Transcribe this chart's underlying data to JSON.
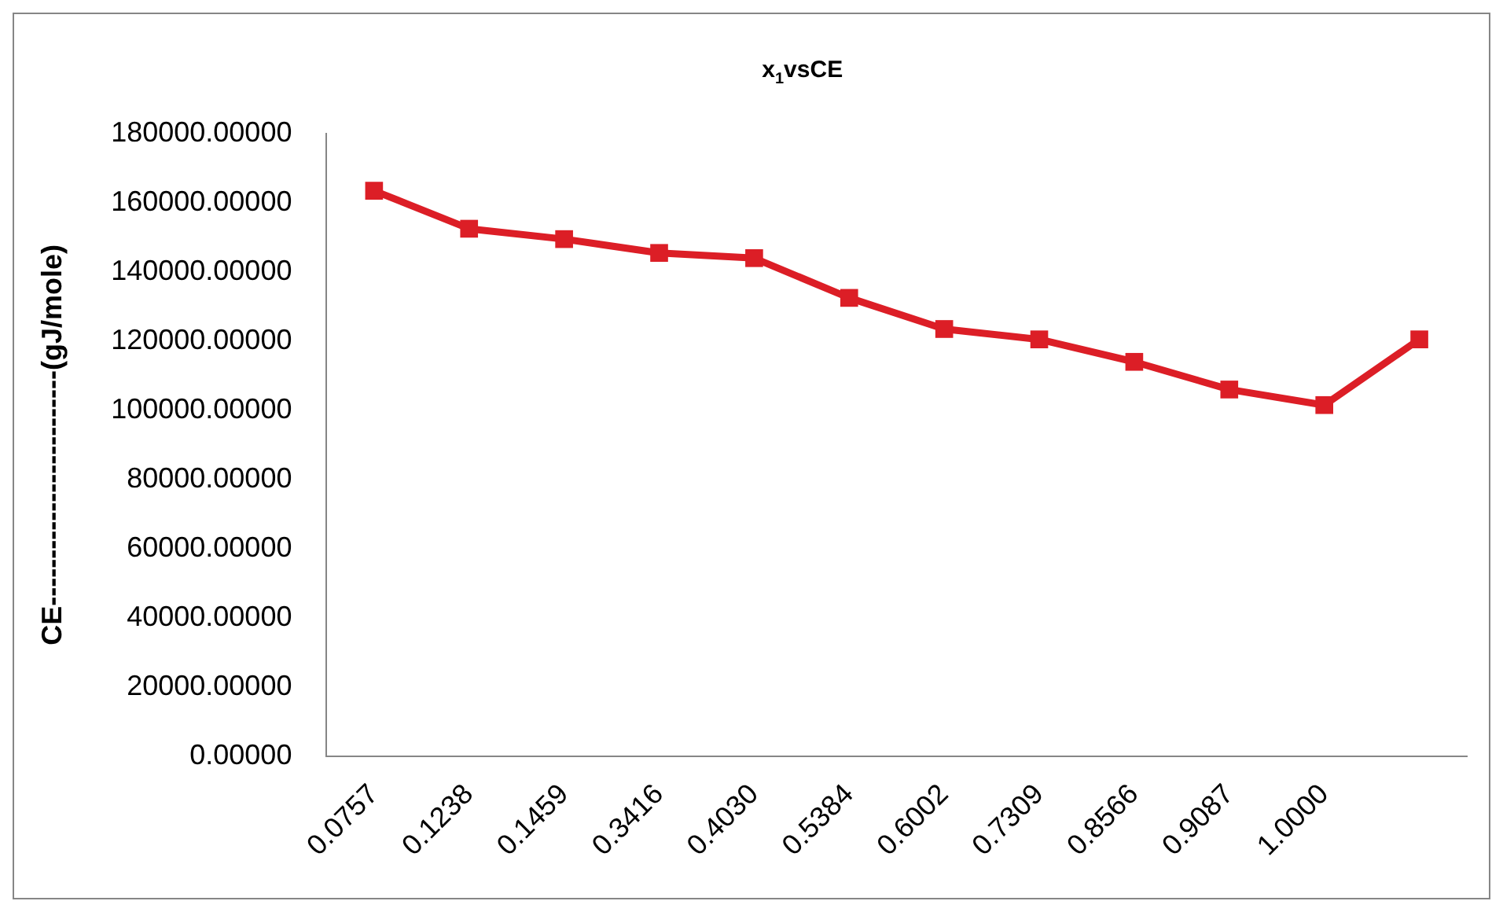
{
  "chart_data": {
    "type": "line",
    "title": "x$_{1}$vsCE",
    "ylabel": "CE-------------------------(gJ/mole)",
    "categories": [
      "0.0757",
      "0.1238",
      "0.1459",
      "0.3416",
      "0.4030",
      "0.5384",
      "0.6002",
      "0.7309",
      "0.8566",
      "0.9087",
      "1.0000",
      null
    ],
    "series": [
      {
        "color": "#dc1e26",
        "values": [
          163500,
          152500,
          149500,
          145500,
          144000,
          132500,
          123500,
          120500,
          114000,
          106000,
          101500,
          120500
        ]
      }
    ],
    "ylim": [
      0,
      180000
    ],
    "yticks": [
      {
        "value": 0,
        "label": "0.00000"
      },
      {
        "value": 20000,
        "label": "20000.00000"
      },
      {
        "value": 40000,
        "label": "40000.00000"
      },
      {
        "value": 60000,
        "label": "60000.00000"
      },
      {
        "value": 80000,
        "label": "80000.00000"
      },
      {
        "value": 100000,
        "label": "100000.00000"
      },
      {
        "value": 120000,
        "label": "120000.00000"
      },
      {
        "value": 140000,
        "label": "140000.00000"
      },
      {
        "value": 160000,
        "label": "160000.00000"
      },
      {
        "value": 180000,
        "label": "180000.00000"
      }
    ],
    "grid": false,
    "legend": false,
    "marker": "square",
    "line_style": "solid"
  }
}
